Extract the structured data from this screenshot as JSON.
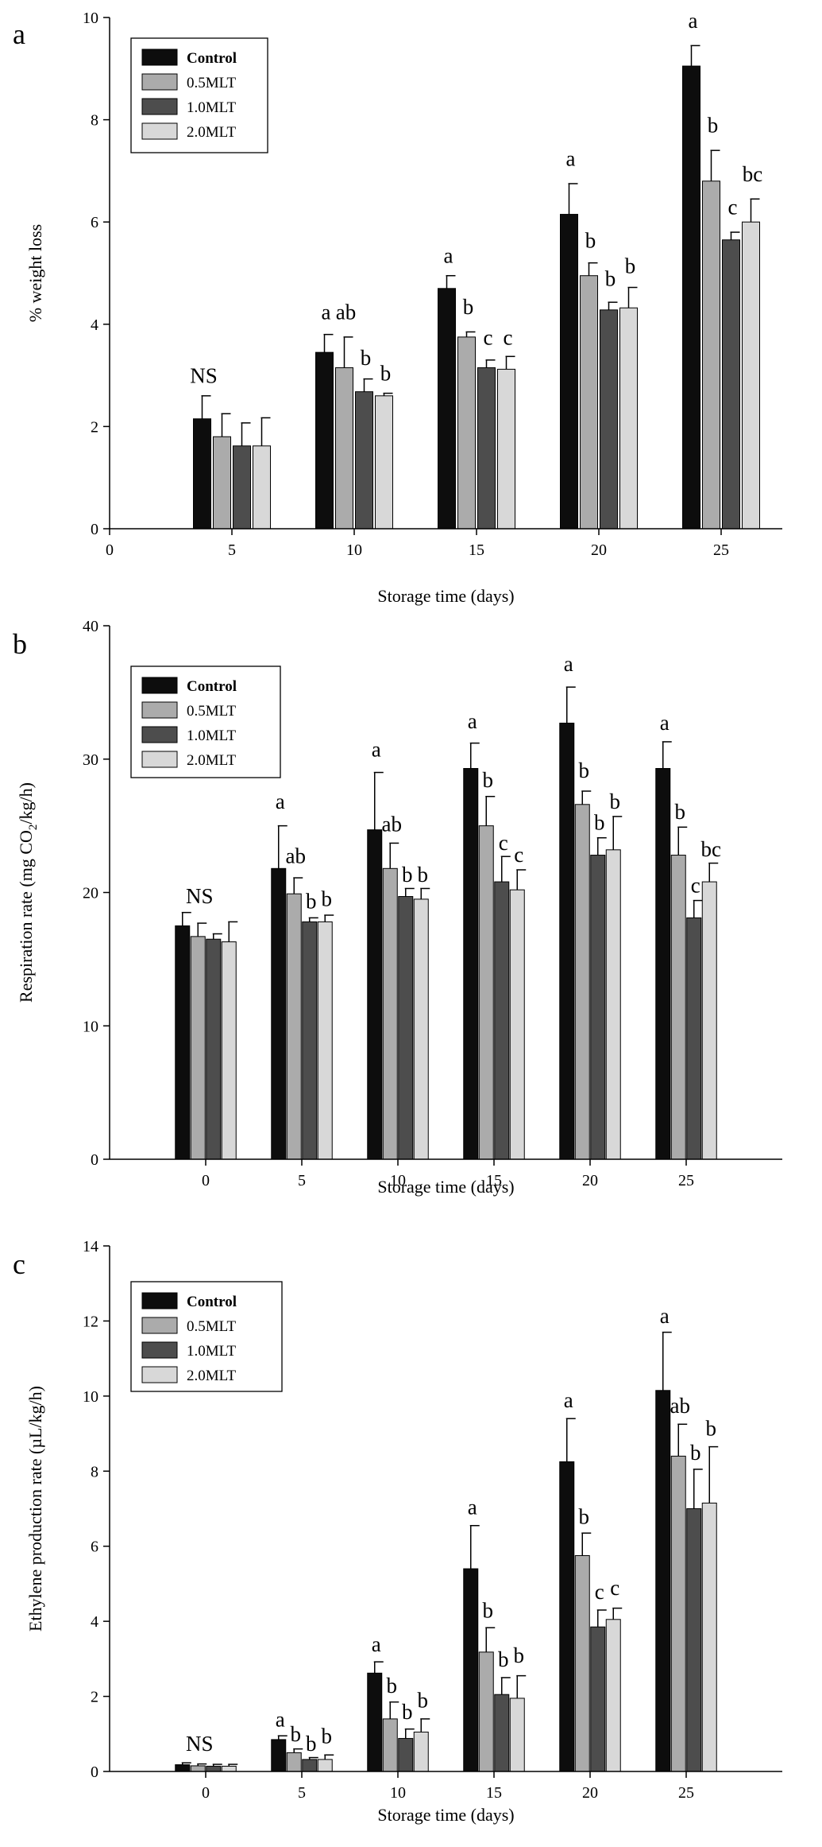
{
  "chart_data": [
    {
      "type": "bar",
      "panel": "a",
      "title": "",
      "xlabel": "Storage time (days)",
      "ylabel": "% weight loss",
      "xlim": [
        0,
        27.5
      ],
      "ylim": [
        0,
        10
      ],
      "xticks": [
        0,
        5,
        10,
        15,
        20,
        25
      ],
      "yticks": [
        0,
        2,
        4,
        6,
        8,
        10
      ],
      "grid": false,
      "legend_position": "top-left",
      "categories": [
        5,
        10,
        15,
        20,
        25
      ],
      "series": [
        {
          "name": "Control",
          "color": "#0d0d0d",
          "values": [
            2.15,
            3.45,
            4.7,
            6.15,
            9.05
          ],
          "errors": [
            0.45,
            0.35,
            0.25,
            0.6,
            0.4
          ]
        },
        {
          "name": "0.5MLT",
          "color": "#ababab",
          "values": [
            1.8,
            3.15,
            3.75,
            4.95,
            6.8
          ],
          "errors": [
            0.45,
            0.6,
            0.1,
            0.25,
            0.6
          ]
        },
        {
          "name": "1.0MLT",
          "color": "#4d4d4d",
          "values": [
            1.62,
            2.68,
            3.15,
            4.28,
            5.65
          ],
          "errors": [
            0.45,
            0.25,
            0.15,
            0.15,
            0.15
          ]
        },
        {
          "name": "2.0MLT",
          "color": "#d8d8d8",
          "values": [
            1.62,
            2.6,
            3.12,
            4.32,
            6.0
          ],
          "errors": [
            0.55,
            0.05,
            0.25,
            0.4,
            0.45
          ]
        }
      ],
      "annotations": [
        {
          "text": "NS",
          "category": 5,
          "series": 0,
          "y": 2.85
        },
        {
          "text": "a",
          "category": 10,
          "series": 0,
          "y": 4.1
        },
        {
          "text": "ab",
          "category": 10,
          "series": 1,
          "y": 4.1
        },
        {
          "text": "b",
          "category": 10,
          "series": 2,
          "y": 3.2
        },
        {
          "text": "b",
          "category": 10,
          "series": 3,
          "y": 2.9
        },
        {
          "text": "a",
          "category": 15,
          "series": 0,
          "y": 5.2
        },
        {
          "text": "b",
          "category": 15,
          "series": 1,
          "y": 4.2
        },
        {
          "text": "c",
          "category": 15,
          "series": 2,
          "y": 3.6
        },
        {
          "text": "c",
          "category": 15,
          "series": 3,
          "y": 3.6
        },
        {
          "text": "a",
          "category": 20,
          "series": 0,
          "y": 7.1
        },
        {
          "text": "b",
          "category": 20,
          "series": 1,
          "y": 5.5
        },
        {
          "text": "b",
          "category": 20,
          "series": 2,
          "y": 4.75
        },
        {
          "text": "b",
          "category": 20,
          "series": 3,
          "y": 5.0
        },
        {
          "text": "a",
          "category": 25,
          "series": 0,
          "y": 9.8
        },
        {
          "text": "b",
          "category": 25,
          "series": 1,
          "y": 7.75
        },
        {
          "text": "c",
          "category": 25,
          "series": 2,
          "y": 6.15
        },
        {
          "text": "bc",
          "category": 25,
          "series": 3,
          "y": 6.8
        }
      ]
    },
    {
      "type": "bar",
      "panel": "b",
      "title": "",
      "xlabel": "Storage time (days)",
      "ylabel_pre": "Respiration rate (mg CO",
      "ylabel_sub": "2",
      "ylabel_post": "/kg/h)",
      "xlim": [
        -5,
        30
      ],
      "ylim": [
        0,
        40
      ],
      "xticks": [
        0,
        5,
        10,
        15,
        20,
        25
      ],
      "yticks": [
        0,
        10,
        20,
        30,
        40
      ],
      "grid": false,
      "legend_position": "top-left",
      "categories": [
        0,
        5,
        10,
        15,
        20,
        25
      ],
      "series": [
        {
          "name": "Control",
          "color": "#0d0d0d",
          "values": [
            17.5,
            21.8,
            24.7,
            29.3,
            32.7,
            29.3
          ],
          "errors": [
            1.0,
            3.2,
            4.3,
            1.9,
            2.7,
            2.0
          ]
        },
        {
          "name": "0.5MLT",
          "color": "#ababab",
          "values": [
            16.7,
            19.9,
            21.8,
            25.0,
            26.6,
            22.8
          ],
          "errors": [
            1.0,
            1.2,
            1.9,
            2.2,
            1.0,
            2.1
          ]
        },
        {
          "name": "1.0MLT",
          "color": "#4d4d4d",
          "values": [
            16.5,
            17.8,
            19.7,
            20.8,
            22.8,
            18.1
          ],
          "errors": [
            0.4,
            0.3,
            0.6,
            1.9,
            1.3,
            1.3
          ]
        },
        {
          "name": "2.0MLT",
          "color": "#d8d8d8",
          "values": [
            16.3,
            17.8,
            19.5,
            20.2,
            23.2,
            20.8
          ],
          "errors": [
            1.5,
            0.5,
            0.8,
            1.5,
            2.5,
            1.4
          ]
        }
      ],
      "annotations": [
        {
          "text": "NS",
          "category": 0,
          "series": 1,
          "y": 19.2
        },
        {
          "text": "a",
          "category": 5,
          "series": 0,
          "y": 26.3
        },
        {
          "text": "ab",
          "category": 5,
          "series": 1,
          "y": 22.2
        },
        {
          "text": "b",
          "category": 5,
          "series": 2,
          "y": 18.8
        },
        {
          "text": "b",
          "category": 5,
          "series": 3,
          "y": 19.0
        },
        {
          "text": "a",
          "category": 10,
          "series": 0,
          "y": 30.2
        },
        {
          "text": "ab",
          "category": 10,
          "series": 1,
          "y": 24.6
        },
        {
          "text": "b",
          "category": 10,
          "series": 2,
          "y": 20.8
        },
        {
          "text": "b",
          "category": 10,
          "series": 3,
          "y": 20.8
        },
        {
          "text": "a",
          "category": 15,
          "series": 0,
          "y": 32.3
        },
        {
          "text": "b",
          "category": 15,
          "series": 1,
          "y": 27.9
        },
        {
          "text": "c",
          "category": 15,
          "series": 2,
          "y": 23.2
        },
        {
          "text": "c",
          "category": 15,
          "series": 3,
          "y": 22.3
        },
        {
          "text": "a",
          "category": 20,
          "series": 0,
          "y": 36.6
        },
        {
          "text": "b",
          "category": 20,
          "series": 1,
          "y": 28.6
        },
        {
          "text": "b",
          "category": 20,
          "series": 2,
          "y": 24.7
        },
        {
          "text": "b",
          "category": 20,
          "series": 3,
          "y": 26.3
        },
        {
          "text": "a",
          "category": 25,
          "series": 0,
          "y": 32.2
        },
        {
          "text": "b",
          "category": 25,
          "series": 1,
          "y": 25.5
        },
        {
          "text": "c",
          "category": 25,
          "series": 2,
          "y": 20.0
        },
        {
          "text": "bc",
          "category": 25,
          "series": 3,
          "y": 22.7
        }
      ]
    },
    {
      "type": "bar",
      "panel": "c",
      "title": "",
      "xlabel": "Storage time (days)",
      "ylabel": "Ethylene production rate (µL/kg/h)",
      "xlim": [
        -5,
        30
      ],
      "ylim": [
        0,
        14
      ],
      "xticks": [
        0,
        5,
        10,
        15,
        20,
        25
      ],
      "yticks": [
        0,
        2,
        4,
        6,
        8,
        10,
        12,
        14
      ],
      "grid": false,
      "legend_position": "top-left",
      "categories": [
        0,
        5,
        10,
        15,
        20,
        25
      ],
      "series": [
        {
          "name": "Control",
          "color": "#0d0d0d",
          "values": [
            0.18,
            0.85,
            2.62,
            5.4,
            8.25,
            10.15
          ],
          "errors": [
            0.05,
            0.1,
            0.3,
            1.15,
            1.15,
            1.55
          ]
        },
        {
          "name": "0.5MLT",
          "color": "#ababab",
          "values": [
            0.15,
            0.5,
            1.4,
            3.18,
            5.75,
            8.4
          ],
          "errors": [
            0.05,
            0.1,
            0.45,
            0.65,
            0.6,
            0.85
          ]
        },
        {
          "name": "1.0MLT",
          "color": "#4d4d4d",
          "values": [
            0.14,
            0.32,
            0.88,
            2.05,
            3.85,
            7.0
          ],
          "errors": [
            0.05,
            0.05,
            0.25,
            0.45,
            0.45,
            1.05
          ]
        },
        {
          "name": "2.0MLT",
          "color": "#d8d8d8",
          "values": [
            0.14,
            0.32,
            1.05,
            1.95,
            4.05,
            7.15
          ],
          "errors": [
            0.05,
            0.12,
            0.35,
            0.6,
            0.3,
            1.5
          ]
        }
      ],
      "annotations": [
        {
          "text": "NS",
          "category": 0,
          "series": 1,
          "y": 0.55
        },
        {
          "text": "a",
          "category": 5,
          "series": 0,
          "y": 1.2
        },
        {
          "text": "b",
          "category": 5,
          "series": 1,
          "y": 0.8
        },
        {
          "text": "b",
          "category": 5,
          "series": 2,
          "y": 0.55
        },
        {
          "text": "b",
          "category": 5,
          "series": 3,
          "y": 0.75
        },
        {
          "text": "a",
          "category": 10,
          "series": 0,
          "y": 3.2
        },
        {
          "text": "b",
          "category": 10,
          "series": 1,
          "y": 2.1
        },
        {
          "text": "b",
          "category": 10,
          "series": 2,
          "y": 1.4
        },
        {
          "text": "b",
          "category": 10,
          "series": 3,
          "y": 1.7
        },
        {
          "text": "a",
          "category": 15,
          "series": 0,
          "y": 6.85
        },
        {
          "text": "b",
          "category": 15,
          "series": 1,
          "y": 4.1
        },
        {
          "text": "b",
          "category": 15,
          "series": 2,
          "y": 2.8
        },
        {
          "text": "b",
          "category": 15,
          "series": 3,
          "y": 2.9
        },
        {
          "text": "a",
          "category": 20,
          "series": 0,
          "y": 9.7
        },
        {
          "text": "b",
          "category": 20,
          "series": 1,
          "y": 6.6
        },
        {
          "text": "c",
          "category": 20,
          "series": 2,
          "y": 4.6
        },
        {
          "text": "c",
          "category": 20,
          "series": 3,
          "y": 4.7
        },
        {
          "text": "a",
          "category": 25,
          "series": 0,
          "y": 11.95
        },
        {
          "text": "ab",
          "category": 25,
          "series": 1,
          "y": 9.55
        },
        {
          "text": "b",
          "category": 25,
          "series": 2,
          "y": 8.3
        },
        {
          "text": "b",
          "category": 25,
          "series": 3,
          "y": 8.95
        }
      ]
    }
  ]
}
